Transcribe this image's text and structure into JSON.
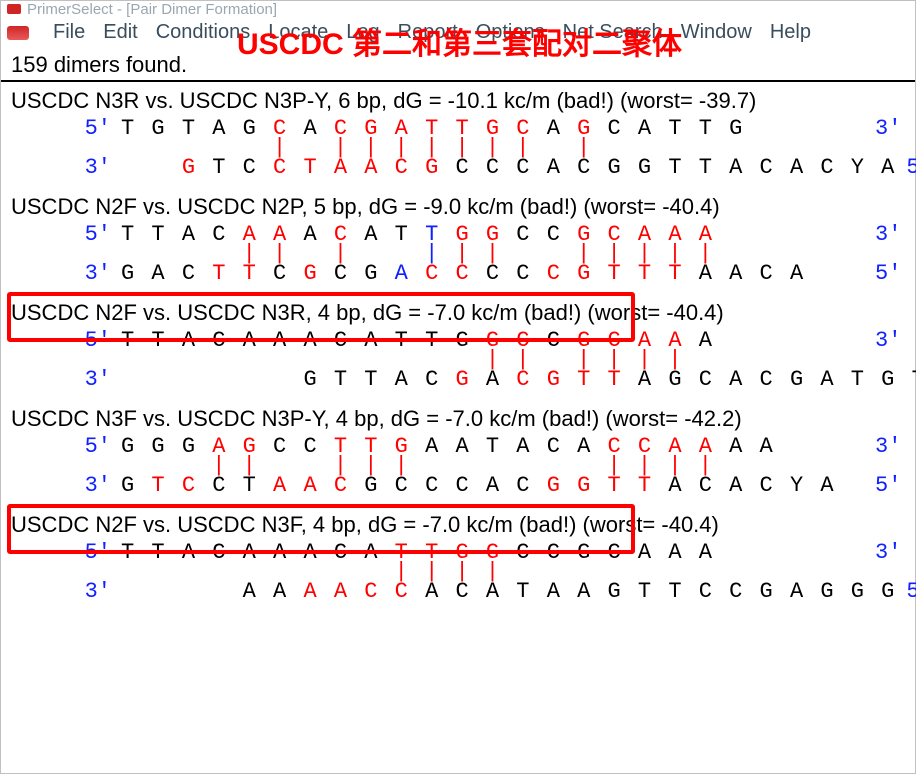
{
  "app": {
    "title": "PrimerSelect - [Pair Dimer Formation]",
    "overlay_annotation": "USCDC 第二和第三套配对二聚体"
  },
  "menu": {
    "items": [
      "File",
      "Edit",
      "Conditions",
      "Locate",
      "Log",
      "Report",
      "Options",
      "Net Search",
      "Window",
      "Help"
    ]
  },
  "status": {
    "text": "159 dimers found."
  },
  "colors": {
    "match": "#ff0000",
    "nomatch": "#000000",
    "end_label": "#1020ff",
    "overlay": "#ff0000",
    "redbox": "#ff0000",
    "title_gray": "#9aa7b0",
    "menu_text": "#3a4d5c"
  },
  "font": {
    "mono": "Consolas",
    "seq_size_pt": 17,
    "heading_size_pt": 17
  },
  "dimers": [
    {
      "heading": "USCDC N3R vs. USCDC N3P-Y, 6 bp, dG = -10.1 kc/m (bad!) (worst= -39.7)",
      "left5": "5'",
      "right3": "3'",
      "left3": "3'",
      "right5": "5'",
      "top": [
        [
          "T",
          "k"
        ],
        [
          "G",
          "k"
        ],
        [
          "T",
          "k"
        ],
        [
          "A",
          "k"
        ],
        [
          "G",
          "k"
        ],
        [
          "C",
          "r"
        ],
        [
          "A",
          "k"
        ],
        [
          "C",
          "r"
        ],
        [
          "G",
          "r"
        ],
        [
          "A",
          "r"
        ],
        [
          "T",
          "r"
        ],
        [
          "T",
          "r"
        ],
        [
          "G",
          "r"
        ],
        [
          "C",
          "r"
        ],
        [
          "A",
          "k"
        ],
        [
          "G",
          "r"
        ],
        [
          "C",
          "k"
        ],
        [
          "A",
          "k"
        ],
        [
          "T",
          "k"
        ],
        [
          "T",
          "k"
        ],
        [
          "G",
          "k"
        ]
      ],
      "bonds": [
        " ",
        " ",
        " ",
        " ",
        " ",
        "|",
        " ",
        "|",
        "|",
        "|",
        "|",
        "|",
        "|",
        "|",
        " ",
        "|",
        " ",
        " ",
        " ",
        " ",
        " "
      ],
      "bond_colors": [
        "k",
        "k",
        "k",
        "k",
        "k",
        "r",
        "k",
        "r",
        "r",
        "r",
        "r",
        "r",
        "r",
        "r",
        "k",
        "r",
        "k",
        "k",
        "k",
        "k",
        "k"
      ],
      "bot_pad": "  ",
      "bottom": [
        [
          "G",
          "r"
        ],
        [
          "T",
          "k"
        ],
        [
          "C",
          "k"
        ],
        [
          "C",
          "r"
        ],
        [
          "T",
          "r"
        ],
        [
          "A",
          "r"
        ],
        [
          "A",
          "r"
        ],
        [
          "C",
          "r"
        ],
        [
          "G",
          "r"
        ],
        [
          "C",
          "k"
        ],
        [
          "C",
          "k"
        ],
        [
          "C",
          "k"
        ],
        [
          "A",
          "k"
        ],
        [
          "C",
          "k"
        ],
        [
          "G",
          "k"
        ],
        [
          "G",
          "k"
        ],
        [
          "T",
          "k"
        ],
        [
          "T",
          "k"
        ],
        [
          "A",
          "k"
        ],
        [
          "C",
          "k"
        ],
        [
          "A",
          "k"
        ],
        [
          "C",
          "k"
        ],
        [
          "Y",
          "k"
        ],
        [
          "A",
          "k"
        ]
      ],
      "highlight": false
    },
    {
      "heading": "USCDC N2F vs. USCDC N2P, 5 bp, dG = -9.0 kc/m (bad!) (worst= -40.4)",
      "left5": "5'",
      "right3": "3'",
      "left3": "3'",
      "right5": "5'",
      "top": [
        [
          "T",
          "k"
        ],
        [
          "T",
          "k"
        ],
        [
          "A",
          "k"
        ],
        [
          "C",
          "k"
        ],
        [
          "A",
          "r"
        ],
        [
          "A",
          "r"
        ],
        [
          "A",
          "k"
        ],
        [
          "C",
          "r"
        ],
        [
          "A",
          "k"
        ],
        [
          "T",
          "k"
        ],
        [
          "T",
          "b"
        ],
        [
          "G",
          "r"
        ],
        [
          "G",
          "r"
        ],
        [
          "C",
          "k"
        ],
        [
          "C",
          "k"
        ],
        [
          "G",
          "r"
        ],
        [
          "C",
          "r"
        ],
        [
          "A",
          "r"
        ],
        [
          "A",
          "r"
        ],
        [
          "A",
          "r"
        ]
      ],
      "bonds": [
        " ",
        " ",
        " ",
        " ",
        "|",
        "|",
        " ",
        "|",
        " ",
        " ",
        "|",
        "|",
        "|",
        " ",
        " ",
        "|",
        "|",
        "|",
        "|",
        "|"
      ],
      "bond_colors": [
        "k",
        "k",
        "k",
        "k",
        "r",
        "r",
        "k",
        "r",
        "k",
        "k",
        "b",
        "r",
        "r",
        "k",
        "k",
        "r",
        "r",
        "r",
        "r",
        "r"
      ],
      "bot_pad": "",
      "bottom": [
        [
          "G",
          "k"
        ],
        [
          "A",
          "k"
        ],
        [
          "C",
          "k"
        ],
        [
          "T",
          "r"
        ],
        [
          "T",
          "r"
        ],
        [
          "C",
          "k"
        ],
        [
          "G",
          "r"
        ],
        [
          "C",
          "k"
        ],
        [
          "G",
          "k"
        ],
        [
          "A",
          "b"
        ],
        [
          "C",
          "r"
        ],
        [
          "C",
          "r"
        ],
        [
          "C",
          "k"
        ],
        [
          "C",
          "k"
        ],
        [
          "C",
          "r"
        ],
        [
          "G",
          "r"
        ],
        [
          "T",
          "r"
        ],
        [
          "T",
          "r"
        ],
        [
          "T",
          "r"
        ],
        [
          "A",
          "k"
        ],
        [
          "A",
          "k"
        ],
        [
          "C",
          "k"
        ],
        [
          "A",
          "k"
        ]
      ],
      "highlight": false
    },
    {
      "heading": "USCDC N2F vs. USCDC N3R, 4 bp, dG = -7.0 kc/m (bad!) (worst= -40.4)",
      "left5": "5'",
      "right3": "3'",
      "left3": "3'",
      "right5": "5'",
      "top": [
        [
          "T",
          "k"
        ],
        [
          "T",
          "k"
        ],
        [
          "A",
          "k"
        ],
        [
          "C",
          "k"
        ],
        [
          "A",
          "k"
        ],
        [
          "A",
          "k"
        ],
        [
          "A",
          "k"
        ],
        [
          "C",
          "k"
        ],
        [
          "A",
          "k"
        ],
        [
          "T",
          "k"
        ],
        [
          "T",
          "k"
        ],
        [
          "G",
          "k"
        ],
        [
          "G",
          "r"
        ],
        [
          "C",
          "r"
        ],
        [
          "C",
          "k"
        ],
        [
          "G",
          "r"
        ],
        [
          "C",
          "r"
        ],
        [
          "A",
          "r"
        ],
        [
          "A",
          "r"
        ],
        [
          "A",
          "k"
        ]
      ],
      "bonds": [
        " ",
        " ",
        " ",
        " ",
        " ",
        " ",
        " ",
        " ",
        " ",
        " ",
        " ",
        " ",
        "|",
        "|",
        " ",
        "|",
        "|",
        "|",
        "|",
        " "
      ],
      "bond_colors": [
        "k",
        "k",
        "k",
        "k",
        "k",
        "k",
        "k",
        "k",
        "k",
        "k",
        "k",
        "k",
        "r",
        "r",
        "k",
        "r",
        "r",
        "r",
        "r",
        "k"
      ],
      "bot_pad": "      ",
      "bottom": [
        [
          "G",
          "k"
        ],
        [
          "T",
          "k"
        ],
        [
          "T",
          "k"
        ],
        [
          "A",
          "k"
        ],
        [
          "C",
          "k"
        ],
        [
          "G",
          "r"
        ],
        [
          "A",
          "k"
        ],
        [
          "C",
          "r"
        ],
        [
          "G",
          "r"
        ],
        [
          "T",
          "r"
        ],
        [
          "T",
          "r"
        ],
        [
          "A",
          "k"
        ],
        [
          "G",
          "k"
        ],
        [
          "C",
          "k"
        ],
        [
          "A",
          "k"
        ],
        [
          "C",
          "k"
        ],
        [
          "G",
          "k"
        ],
        [
          "A",
          "k"
        ],
        [
          "T",
          "k"
        ],
        [
          "G",
          "k"
        ],
        [
          "T",
          "k"
        ]
      ],
      "highlight": true
    },
    {
      "heading": "USCDC N3F vs. USCDC N3P-Y, 4 bp, dG = -7.0 kc/m (bad!) (worst= -42.2)",
      "left5": "5'",
      "right3": "3'",
      "left3": "3'",
      "right5": "5'",
      "top": [
        [
          "G",
          "k"
        ],
        [
          "G",
          "k"
        ],
        [
          "G",
          "k"
        ],
        [
          "A",
          "r"
        ],
        [
          "G",
          "r"
        ],
        [
          "C",
          "k"
        ],
        [
          "C",
          "k"
        ],
        [
          "T",
          "r"
        ],
        [
          "T",
          "r"
        ],
        [
          "G",
          "r"
        ],
        [
          "A",
          "k"
        ],
        [
          "A",
          "k"
        ],
        [
          "T",
          "k"
        ],
        [
          "A",
          "k"
        ],
        [
          "C",
          "k"
        ],
        [
          "A",
          "k"
        ],
        [
          "C",
          "r"
        ],
        [
          "C",
          "r"
        ],
        [
          "A",
          "r"
        ],
        [
          "A",
          "r"
        ],
        [
          "A",
          "k"
        ],
        [
          "A",
          "k"
        ]
      ],
      "bonds": [
        " ",
        " ",
        " ",
        "|",
        "|",
        " ",
        " ",
        "|",
        "|",
        "|",
        " ",
        " ",
        " ",
        " ",
        " ",
        " ",
        "|",
        "|",
        "|",
        "|",
        " ",
        " "
      ],
      "bond_colors": [
        "k",
        "k",
        "k",
        "r",
        "r",
        "k",
        "k",
        "r",
        "r",
        "r",
        "k",
        "k",
        "k",
        "k",
        "k",
        "k",
        "r",
        "r",
        "r",
        "r",
        "k",
        "k"
      ],
      "bot_pad": "",
      "bottom": [
        [
          "G",
          "k"
        ],
        [
          "T",
          "r"
        ],
        [
          "C",
          "r"
        ],
        [
          "C",
          "k"
        ],
        [
          "T",
          "k"
        ],
        [
          "A",
          "r"
        ],
        [
          "A",
          "r"
        ],
        [
          "C",
          "r"
        ],
        [
          "G",
          "k"
        ],
        [
          "C",
          "k"
        ],
        [
          "C",
          "k"
        ],
        [
          "C",
          "k"
        ],
        [
          "A",
          "k"
        ],
        [
          "C",
          "k"
        ],
        [
          "G",
          "r"
        ],
        [
          "G",
          "r"
        ],
        [
          "T",
          "r"
        ],
        [
          "T",
          "r"
        ],
        [
          "A",
          "k"
        ],
        [
          "C",
          "k"
        ],
        [
          "A",
          "k"
        ],
        [
          "C",
          "k"
        ],
        [
          "Y",
          "k"
        ],
        [
          "A",
          "k"
        ]
      ],
      "highlight": false
    },
    {
      "heading": "USCDC N2F vs. USCDC N3F, 4 bp, dG = -7.0 kc/m (bad!) (worst= -40.4)",
      "left5": "5'",
      "right3": "3'",
      "left3": "3'",
      "right5": "5'",
      "top": [
        [
          "T",
          "k"
        ],
        [
          "T",
          "k"
        ],
        [
          "A",
          "k"
        ],
        [
          "C",
          "k"
        ],
        [
          "A",
          "k"
        ],
        [
          "A",
          "k"
        ],
        [
          "A",
          "k"
        ],
        [
          "C",
          "k"
        ],
        [
          "A",
          "k"
        ],
        [
          "T",
          "r"
        ],
        [
          "T",
          "r"
        ],
        [
          "G",
          "r"
        ],
        [
          "G",
          "r"
        ],
        [
          "C",
          "k"
        ],
        [
          "C",
          "k"
        ],
        [
          "G",
          "k"
        ],
        [
          "C",
          "k"
        ],
        [
          "A",
          "k"
        ],
        [
          "A",
          "k"
        ],
        [
          "A",
          "k"
        ]
      ],
      "bonds": [
        " ",
        " ",
        " ",
        " ",
        " ",
        " ",
        " ",
        " ",
        " ",
        "|",
        "|",
        "|",
        "|",
        " ",
        " ",
        " ",
        " ",
        " ",
        " ",
        " "
      ],
      "bond_colors": [
        "k",
        "k",
        "k",
        "k",
        "k",
        "k",
        "k",
        "k",
        "k",
        "r",
        "r",
        "r",
        "r",
        "k",
        "k",
        "k",
        "k",
        "k",
        "k",
        "k"
      ],
      "bot_pad": "    ",
      "bottom": [
        [
          "A",
          "k"
        ],
        [
          "A",
          "k"
        ],
        [
          "A",
          "r"
        ],
        [
          "A",
          "r"
        ],
        [
          "C",
          "r"
        ],
        [
          "C",
          "r"
        ],
        [
          "A",
          "k"
        ],
        [
          "C",
          "k"
        ],
        [
          "A",
          "k"
        ],
        [
          "T",
          "k"
        ],
        [
          "A",
          "k"
        ],
        [
          "A",
          "k"
        ],
        [
          "G",
          "k"
        ],
        [
          "T",
          "k"
        ],
        [
          "T",
          "k"
        ],
        [
          "C",
          "k"
        ],
        [
          "C",
          "k"
        ],
        [
          "G",
          "k"
        ],
        [
          "A",
          "k"
        ],
        [
          "G",
          "k"
        ],
        [
          "G",
          "k"
        ],
        [
          "G",
          "k"
        ]
      ],
      "highlight": true
    }
  ]
}
